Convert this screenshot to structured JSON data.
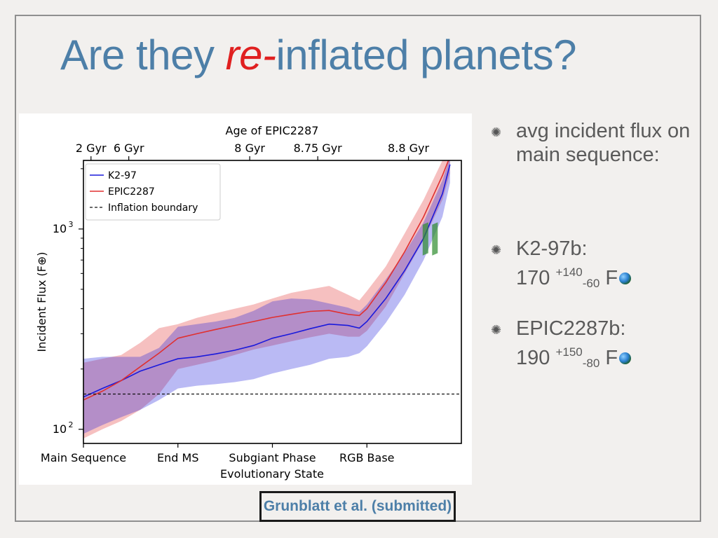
{
  "slide": {
    "title_pre": "Are they ",
    "title_em": "re-",
    "title_post": "inflated planets?",
    "citation": "Grunblatt et al. (submitted)"
  },
  "bullets": [
    {
      "line1": "avg incident flux on main sequence:"
    },
    {
      "line1": "K2-97b:",
      "value": "170",
      "sup": "+140",
      "sub": "-60",
      "unit": "F"
    },
    {
      "line1": "EPIC2287b:",
      "value": "190",
      "sup": "+150",
      "sub": "-80",
      "unit": "F"
    }
  ],
  "icons": {
    "bullet": "asterisk-bullet-icon",
    "unit": "earth-icon"
  },
  "chart_data": {
    "type": "line",
    "title": "",
    "xlabel": "Evolutionary State",
    "ylabel": "Incident Flux (F⊕)",
    "top_axis_label": "Age of EPIC2287",
    "y_scale": "log",
    "ylim": [
      85,
      2200
    ],
    "xlim": [
      0,
      1
    ],
    "x_ticks": [
      {
        "x": 0.0,
        "label": "Main Sequence"
      },
      {
        "x": 0.25,
        "label": "End MS"
      },
      {
        "x": 0.5,
        "label": "Subgiant Phase"
      },
      {
        "x": 0.75,
        "label": "RGB Base"
      }
    ],
    "top_ticks": [
      {
        "x": 0.02,
        "label": "2 Gyr"
      },
      {
        "x": 0.12,
        "label": "6 Gyr"
      },
      {
        "x": 0.44,
        "label": "8 Gyr"
      },
      {
        "x": 0.62,
        "label": "8.75 Gyr"
      },
      {
        "x": 0.86,
        "label": "8.8 Gyr"
      }
    ],
    "y_ticks": [
      {
        "value": 100,
        "label": "10",
        "exp": "2"
      },
      {
        "value": 1000,
        "label": "10",
        "exp": "3"
      }
    ],
    "legend_position": "top-left",
    "grid": false,
    "colors": {
      "k2_97": "#1a1adc",
      "epic2287": "#e03030",
      "inflation": "#111111",
      "shade": "#2e8b2e"
    },
    "inflation_boundary": 150,
    "series": [
      {
        "name": "K2-97",
        "color": "#1a1adc",
        "x": [
          0.0,
          0.05,
          0.1,
          0.15,
          0.2,
          0.25,
          0.3,
          0.35,
          0.4,
          0.45,
          0.5,
          0.55,
          0.6,
          0.65,
          0.7,
          0.73,
          0.75,
          0.8,
          0.85,
          0.9,
          0.95,
          0.97
        ],
        "y": [
          145,
          160,
          175,
          195,
          210,
          225,
          230,
          238,
          248,
          262,
          285,
          300,
          318,
          335,
          330,
          320,
          345,
          450,
          620,
          900,
          1500,
          2100
        ],
        "lower": [
          95,
          105,
          115,
          125,
          140,
          160,
          165,
          168,
          172,
          178,
          190,
          200,
          210,
          225,
          230,
          240,
          260,
          340,
          470,
          700,
          1150,
          1700
        ],
        "upper": [
          225,
          230,
          230,
          230,
          255,
          325,
          335,
          345,
          360,
          390,
          435,
          450,
          445,
          425,
          405,
          385,
          420,
          560,
          760,
          1080,
          1750,
          2300
        ]
      },
      {
        "name": "EPIC2287",
        "color": "#e03030",
        "x": [
          0.0,
          0.05,
          0.1,
          0.15,
          0.2,
          0.25,
          0.3,
          0.35,
          0.4,
          0.45,
          0.5,
          0.55,
          0.6,
          0.65,
          0.7,
          0.73,
          0.75,
          0.8,
          0.85,
          0.9,
          0.95,
          0.97
        ],
        "y": [
          140,
          155,
          175,
          205,
          240,
          285,
          300,
          315,
          330,
          345,
          362,
          375,
          388,
          392,
          375,
          370,
          400,
          540,
          770,
          1150,
          1850,
          2300
        ],
        "lower": [
          90,
          100,
          110,
          125,
          150,
          200,
          210,
          220,
          235,
          250,
          262,
          275,
          288,
          300,
          290,
          290,
          310,
          410,
          600,
          880,
          1400,
          1900
        ],
        "upper": [
          215,
          225,
          235,
          270,
          320,
          335,
          360,
          380,
          400,
          420,
          450,
          480,
          500,
          520,
          470,
          440,
          490,
          650,
          950,
          1400,
          2200,
          2500
        ]
      },
      {
        "name": "Inflation boundary",
        "color": "#111111",
        "dashed": true,
        "x": [
          0.0,
          1.0
        ],
        "y": [
          150,
          150
        ]
      }
    ],
    "highlights": [
      {
        "x_center": 0.905,
        "y_center": 880
      },
      {
        "x_center": 0.93,
        "y_center": 880
      }
    ]
  }
}
